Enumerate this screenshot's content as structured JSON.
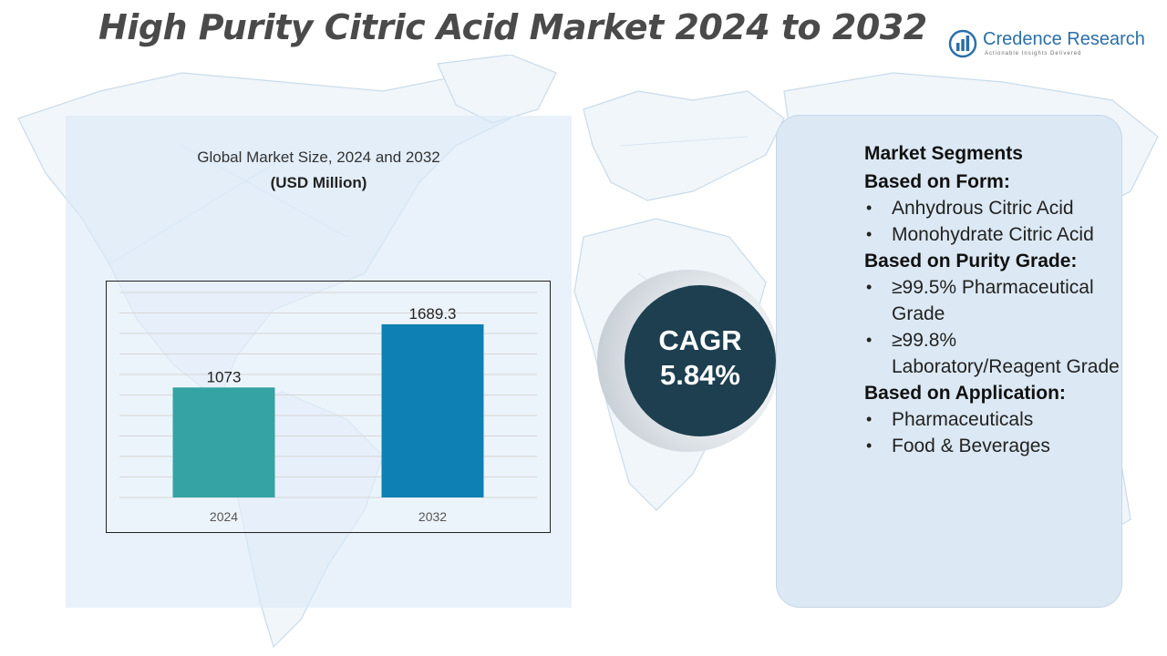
{
  "title": "High Purity Citric Acid Market 2024 to 2032",
  "logo": {
    "name": "Credence Research",
    "tagline": "Actionable Insights Delivered",
    "icon": "chart-logo-icon",
    "brand_color": "#2a6fa8"
  },
  "chart_panel": {
    "heading": "Global Market Size, 2024 and 2032",
    "unit": "(USD Million)"
  },
  "chart_data": {
    "type": "bar",
    "categories": [
      "2024",
      "2032"
    ],
    "values": [
      1073,
      1689.3
    ],
    "value_labels": [
      "1073",
      "1689.3"
    ],
    "bar_colors": [
      "#35a3a3",
      "#0f80b3"
    ],
    "ylim": [
      0,
      2000
    ],
    "grid": true,
    "legend": "none",
    "title": "",
    "xlabel": "",
    "ylabel": ""
  },
  "cagr": {
    "label": "CAGR",
    "value": "5.84%",
    "color": "#1d3f4f"
  },
  "segments": {
    "title": "Market Segments",
    "groups": [
      {
        "title": "Based on Form:",
        "items": [
          "Anhydrous Citric Acid",
          "Monohydrate Citric Acid"
        ]
      },
      {
        "title": "Based on Purity Grade:",
        "items": [
          "≥99.5% Pharmaceutical Grade",
          "≥99.8% Laboratory/Reagent Grade"
        ]
      },
      {
        "title": "Based on Application:",
        "items": [
          "Pharmaceuticals",
          "Food & Beverages"
        ]
      }
    ]
  }
}
